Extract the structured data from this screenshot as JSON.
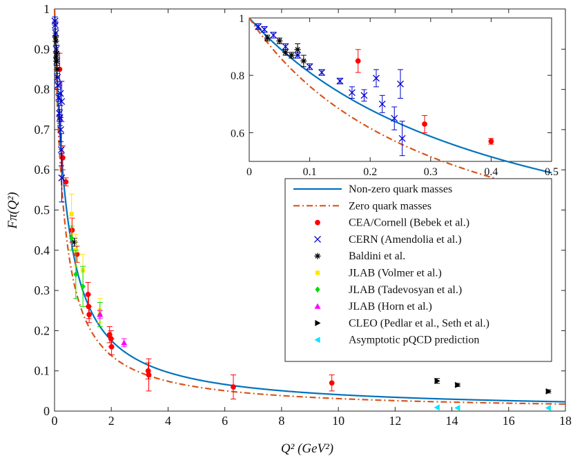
{
  "chart_data": [
    {
      "type": "line+errorbar",
      "panel": "main",
      "xlabel": "Q² (GeV²)",
      "ylabel": "Fπ(Q²)",
      "xlim": [
        0,
        18
      ],
      "ylim": [
        0,
        1
      ],
      "xticks": [
        0,
        2,
        4,
        6,
        8,
        10,
        12,
        14,
        16,
        18
      ],
      "yticks": [
        0,
        0.1,
        0.2,
        0.3,
        0.4,
        0.5,
        0.6,
        0.7,
        0.8,
        0.9,
        1
      ],
      "legend_position": "right, below inset",
      "curves": [
        {
          "name": "Non-zero quark masses",
          "color": "#0072BD",
          "style": "solid",
          "mass_scale": 0.653
        },
        {
          "name": "Zero quark masses",
          "color": "#D95319",
          "style": "dash-dot",
          "mass_scale": 0.566
        }
      ],
      "series": [
        {
          "name": "CEA/Cornell (Bebek et al.)",
          "marker": "circle",
          "color": "#FF0000",
          "points": [
            [
              0.18,
              0.85,
              0.04
            ],
            [
              0.29,
              0.63,
              0.03
            ],
            [
              0.4,
              0.57,
              0.01
            ],
            [
              0.62,
              0.45,
              0.03
            ],
            [
              0.79,
              0.39,
              0.02
            ],
            [
              1.18,
              0.29,
              0.03
            ],
            [
              1.2,
              0.26,
              0.03
            ],
            [
              1.22,
              0.24,
              0.02
            ],
            [
              1.94,
              0.19,
              0.02
            ],
            [
              1.99,
              0.18,
              0.02
            ],
            [
              2.01,
              0.16,
              0.02
            ],
            [
              3.3,
              0.1,
              0.02
            ],
            [
              3.32,
              0.09,
              0.04
            ],
            [
              6.3,
              0.06,
              0.03
            ],
            [
              9.77,
              0.07,
              0.02
            ]
          ]
        },
        {
          "name": "CERN (Amendolia et al.)",
          "marker": "x",
          "color": "#0000CC",
          "points": [
            [
              0.015,
              0.97,
              0.01
            ],
            [
              0.025,
              0.96,
              0.01
            ],
            [
              0.04,
              0.94,
              0.01
            ],
            [
              0.06,
              0.9,
              0.01
            ],
            [
              0.08,
              0.87,
              0.01
            ],
            [
              0.1,
              0.83,
              0.01
            ],
            [
              0.12,
              0.81,
              0.01
            ],
            [
              0.15,
              0.78,
              0.01
            ],
            [
              0.17,
              0.74,
              0.02
            ],
            [
              0.19,
              0.73,
              0.02
            ],
            [
              0.21,
              0.79,
              0.03
            ],
            [
              0.22,
              0.7,
              0.03
            ],
            [
              0.24,
              0.65,
              0.04
            ],
            [
              0.25,
              0.77,
              0.05
            ],
            [
              0.253,
              0.58,
              0.06
            ]
          ]
        },
        {
          "name": "Baldini et al.",
          "marker": "asterisk",
          "color": "#000000",
          "points": [
            [
              0.03,
              0.93,
              0.01
            ],
            [
              0.05,
              0.92,
              0.01
            ],
            [
              0.06,
              0.88,
              0.01
            ],
            [
              0.07,
              0.87,
              0.01
            ],
            [
              0.08,
              0.89,
              0.02
            ],
            [
              0.09,
              0.85,
              0.02
            ],
            [
              0.7,
              0.42,
              0.01
            ]
          ]
        },
        {
          "name": "JLAB (Volmer et al.)",
          "marker": "square",
          "color": "#FFE600",
          "points": [
            [
              0.6,
              0.49,
              0.05
            ],
            [
              0.75,
              0.4,
              0.04
            ],
            [
              1.0,
              0.35,
              0.04
            ],
            [
              1.6,
              0.25,
              0.03
            ]
          ]
        },
        {
          "name": "JLAB (Tadevosyan et al.)",
          "marker": "diamond",
          "color": "#00DD00",
          "points": [
            [
              0.6,
              0.43,
              0.03
            ],
            [
              0.75,
              0.34,
              0.06
            ],
            [
              1.0,
              0.31,
              0.05
            ],
            [
              1.6,
              0.24,
              0.03
            ]
          ]
        },
        {
          "name": "JLAB (Horn et al.)",
          "marker": "triangle-up",
          "color": "#FF00FF",
          "points": [
            [
              1.6,
              0.24,
              0.01
            ],
            [
              2.45,
              0.17,
              0.01
            ]
          ]
        },
        {
          "name": "CLEO (Pedlar et al., Seth et al.)",
          "marker": "triangle-right",
          "color": "#000000",
          "points": [
            [
              13.48,
              0.075,
              0.006
            ],
            [
              14.2,
              0.065,
              0.004
            ],
            [
              17.4,
              0.049,
              0.004
            ]
          ]
        },
        {
          "name": "Asymptotic pQCD prediction",
          "marker": "triangle-left",
          "color": "#00E5FF",
          "points": [
            [
              13.48,
              0.009,
              0
            ],
            [
              14.2,
              0.008,
              0
            ],
            [
              17.4,
              0.008,
              0
            ]
          ]
        }
      ]
    },
    {
      "type": "line+errorbar",
      "panel": "inset",
      "xlim": [
        0,
        0.5
      ],
      "ylim": [
        0.5,
        1
      ],
      "xticks": [
        0,
        0.1,
        0.2,
        0.3,
        0.4,
        0.5
      ],
      "yticks": [
        0.6,
        0.8,
        1
      ],
      "content": "zoom of main panel for Q² ≤ 0.5 GeV² (same curves and CEA/CERN/Baldini points)"
    }
  ]
}
